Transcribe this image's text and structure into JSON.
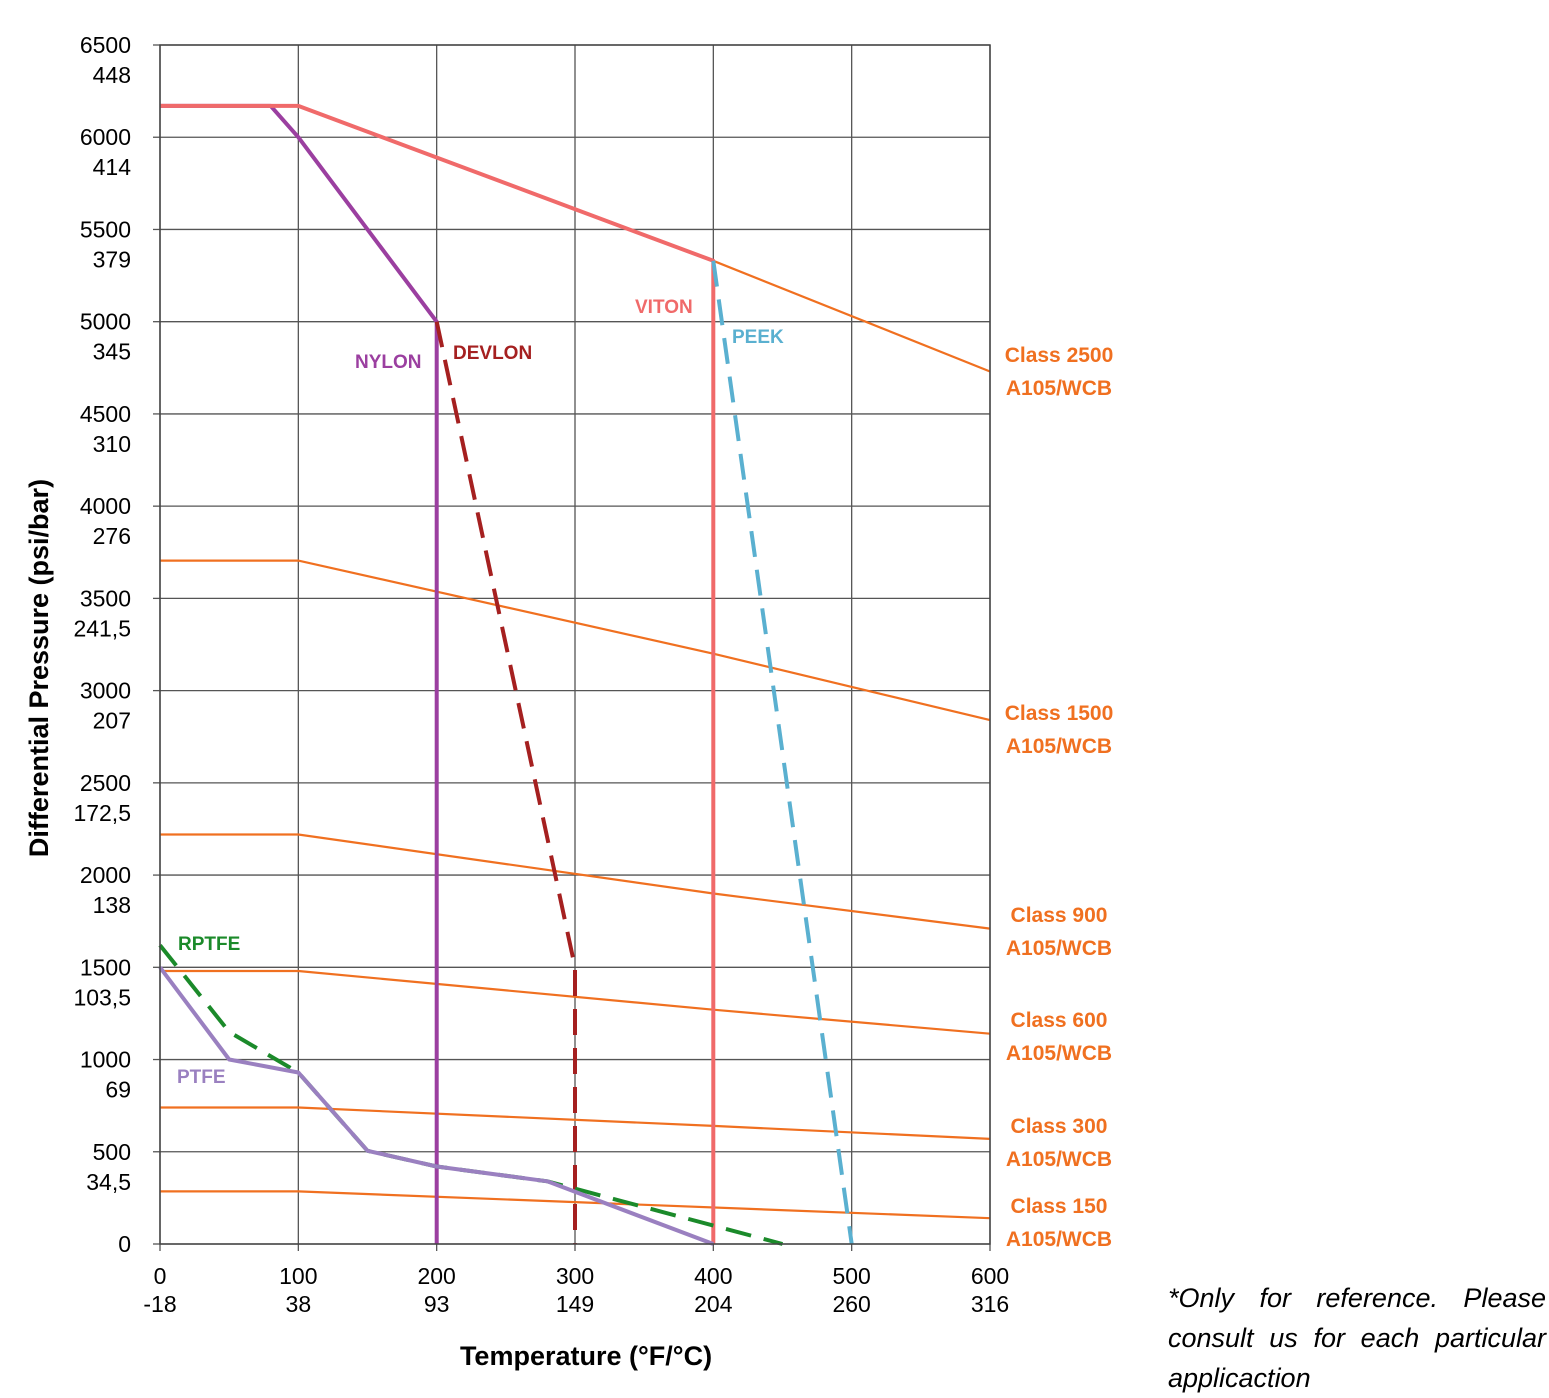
{
  "chart_data": {
    "type": "line",
    "xlabel": "Temperature (°F/°C)",
    "ylabel": "Differential Pressure (psi/bar)",
    "xlim": [
      0,
      600
    ],
    "ylim": [
      0,
      6500
    ],
    "x_ticks": [
      {
        "value": 0,
        "f": "0",
        "c": "-18"
      },
      {
        "value": 100,
        "f": "100",
        "c": "38"
      },
      {
        "value": 200,
        "f": "200",
        "c": "93"
      },
      {
        "value": 300,
        "f": "300",
        "c": "149"
      },
      {
        "value": 400,
        "f": "400",
        "c": "204"
      },
      {
        "value": 500,
        "f": "500",
        "c": "260"
      },
      {
        "value": 600,
        "f": "600",
        "c": "316"
      }
    ],
    "y_ticks": [
      {
        "value": 0,
        "psi": "0",
        "bar": ""
      },
      {
        "value": 500,
        "psi": "500",
        "bar": "34,5"
      },
      {
        "value": 1000,
        "psi": "1000",
        "bar": "69"
      },
      {
        "value": 1500,
        "psi": "1500",
        "bar": "103,5"
      },
      {
        "value": 2000,
        "psi": "2000",
        "bar": "138"
      },
      {
        "value": 2500,
        "psi": "2500",
        "bar": "172,5"
      },
      {
        "value": 3000,
        "psi": "3000",
        "bar": "207"
      },
      {
        "value": 3500,
        "psi": "3500",
        "bar": "241,5"
      },
      {
        "value": 4000,
        "psi": "4000",
        "bar": "276"
      },
      {
        "value": 4500,
        "psi": "4500",
        "bar": "310"
      },
      {
        "value": 5000,
        "psi": "5000",
        "bar": "345"
      },
      {
        "value": 5500,
        "psi": "5500",
        "bar": "379"
      },
      {
        "value": 6000,
        "psi": "6000",
        "bar": "414"
      },
      {
        "value": 6500,
        "psi": "6500",
        "bar": "448"
      }
    ],
    "grid": true,
    "class_curves": [
      {
        "name": "Class 2500",
        "material": "A105/WCB",
        "points": [
          [
            0,
            6170
          ],
          [
            100,
            6170
          ],
          [
            400,
            5330
          ],
          [
            600,
            4730
          ]
        ]
      },
      {
        "name": "Class 1500",
        "material": "A105/WCB",
        "points": [
          [
            0,
            3705
          ],
          [
            100,
            3705
          ],
          [
            400,
            3200
          ],
          [
            600,
            2840
          ]
        ]
      },
      {
        "name": "Class 900",
        "material": "A105/WCB",
        "points": [
          [
            0,
            2220
          ],
          [
            100,
            2220
          ],
          [
            400,
            1900
          ],
          [
            600,
            1710
          ]
        ]
      },
      {
        "name": "Class 600",
        "material": "A105/WCB",
        "points": [
          [
            0,
            1480
          ],
          [
            100,
            1480
          ],
          [
            400,
            1270
          ],
          [
            600,
            1140
          ]
        ]
      },
      {
        "name": "Class 300",
        "material": "A105/WCB",
        "points": [
          [
            0,
            740
          ],
          [
            100,
            740
          ],
          [
            400,
            640
          ],
          [
            600,
            570
          ]
        ]
      },
      {
        "name": "Class 150",
        "material": "A105/WCB",
        "points": [
          [
            0,
            285
          ],
          [
            100,
            285
          ],
          [
            600,
            140
          ]
        ]
      }
    ],
    "series": [
      {
        "name": "NYLON",
        "color": "#9b3fa0",
        "dash": false,
        "points": [
          [
            0,
            6170
          ],
          [
            80,
            6170
          ],
          [
            100,
            6000
          ],
          [
            200,
            5000
          ],
          [
            200,
            0
          ]
        ]
      },
      {
        "name": "DEVLON",
        "color": "#a52020",
        "dash": true,
        "points": [
          [
            200,
            5000
          ],
          [
            300,
            1500
          ],
          [
            300,
            0
          ]
        ]
      },
      {
        "name": "VITON",
        "color": "#f06a6a",
        "dash": false,
        "points": [
          [
            0,
            6170
          ],
          [
            100,
            6170
          ],
          [
            400,
            5330
          ],
          [
            400,
            0
          ]
        ]
      },
      {
        "name": "PEEK",
        "color": "#5ab0d0",
        "dash": true,
        "points": [
          [
            400,
            5330
          ],
          [
            500,
            0
          ]
        ]
      },
      {
        "name": "RPTFE",
        "color": "#1b8a2a",
        "dash": true,
        "points": [
          [
            0,
            1620
          ],
          [
            50,
            1150
          ],
          [
            100,
            930
          ],
          [
            150,
            505
          ],
          [
            200,
            420
          ],
          [
            280,
            340
          ],
          [
            450,
            0
          ]
        ]
      },
      {
        "name": "PTFE",
        "color": "#9a80c0",
        "dash": false,
        "points": [
          [
            0,
            1500
          ],
          [
            50,
            1000
          ],
          [
            100,
            930
          ],
          [
            150,
            505
          ],
          [
            200,
            420
          ],
          [
            280,
            340
          ],
          [
            400,
            0
          ]
        ]
      }
    ]
  },
  "note": "*Only for reference. Please consult us for each particular applicaction"
}
